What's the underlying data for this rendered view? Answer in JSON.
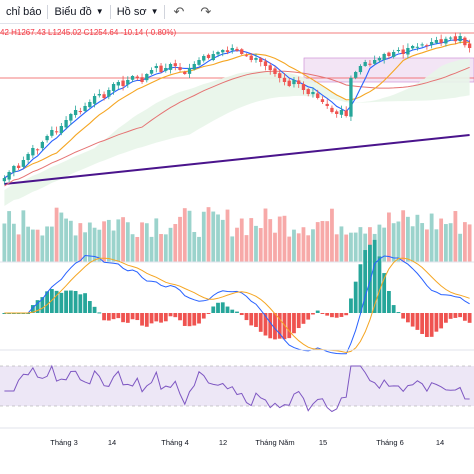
{
  "toolbar": {
    "indicators_label": "chỉ báo",
    "chart_label": "Biểu đồ",
    "profile_label": "Hồ sơ",
    "undo_icon": "undo-icon",
    "redo_icon": "redo-icon"
  },
  "legend": {
    "ohlc_text": "42  H1267.43  L1245.02  C1254.64  -10.14 (-0.80%)"
  },
  "colors": {
    "up": "#26a69a",
    "down": "#ef5350",
    "ma_fast": "#2962ff",
    "ma_mid": "#f5a623",
    "ma_slow": "#e57373",
    "ma_long": "#4a148c",
    "cloud": "#e8f5e9",
    "box": "#f3e5f5",
    "rsi_band": "#ede7f6",
    "rsi_line": "#7e57c2"
  },
  "x_axis": {
    "labels": [
      "Tháng 3",
      "14",
      "Tháng 4",
      "12",
      "Tháng Năm",
      "15",
      "Tháng 6",
      "14"
    ]
  },
  "chart_data": {
    "type": "candlestick",
    "candle_closes_approx": [
      930,
      945,
      960,
      955,
      975,
      990,
      1005,
      1000,
      1020,
      1035,
      1050,
      1045,
      1060,
      1075,
      1090,
      1100,
      1095,
      1110,
      1120,
      1135,
      1140,
      1130,
      1150,
      1165,
      1170,
      1160,
      1175,
      1185,
      1180,
      1170,
      1190,
      1200,
      1210,
      1195,
      1205,
      1215,
      1210,
      1200,
      1190,
      1205,
      1215,
      1225,
      1235,
      1230,
      1240,
      1245,
      1250,
      1245,
      1255,
      1248,
      1240,
      1235,
      1225,
      1230,
      1220,
      1210,
      1200,
      1190,
      1180,
      1170,
      1160,
      1175,
      1165,
      1150,
      1140,
      1145,
      1130,
      1120,
      1110,
      1095,
      1090,
      1100,
      1085,
      1180,
      1195,
      1210,
      1220,
      1215,
      1225,
      1230,
      1240,
      1235,
      1245,
      1250,
      1240,
      1255,
      1260,
      1258,
      1264,
      1262,
      1270,
      1275,
      1268,
      1278,
      1281,
      1272,
      1285,
      1262,
      1255
    ]
  }
}
